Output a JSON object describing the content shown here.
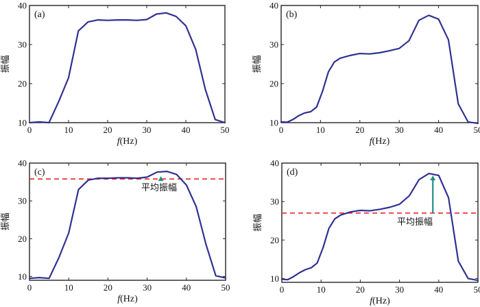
{
  "colors": {
    "series": "#2e3192",
    "mean": "#e8262a",
    "arrow": "#1f8f85"
  },
  "chart_data": [
    {
      "type": "line",
      "panel_label": "(a)",
      "xlabel_italic": "f",
      "xlabel_unit": "(Hz)",
      "ylabel": "振幅",
      "xlim": [
        0,
        50
      ],
      "ylim": [
        10,
        40
      ],
      "xticks": [
        0,
        10,
        20,
        30,
        40,
        50
      ],
      "yticks": [
        10,
        20,
        30,
        40
      ],
      "x": [
        0,
        2.5,
        5,
        7.5,
        10,
        12.5,
        15,
        17.5,
        20,
        22.5,
        25,
        27.5,
        30,
        32.5,
        35,
        37.5,
        40,
        42.5,
        45,
        47.5,
        50
      ],
      "values": [
        10,
        10.2,
        10,
        15.5,
        21.5,
        33.5,
        35.8,
        36.3,
        36.2,
        36.3,
        36.3,
        36.2,
        36.4,
        37.8,
        38.1,
        37.2,
        34.8,
        28.8,
        18.5,
        10.8,
        10
      ]
    },
    {
      "type": "line",
      "panel_label": "(b)",
      "xlabel_italic": "f",
      "xlabel_unit": "(Hz)",
      "ylabel": "振幅",
      "xlim": [
        0,
        50
      ],
      "ylim": [
        10,
        40
      ],
      "xticks": [
        0,
        10,
        20,
        30,
        40,
        50
      ],
      "yticks": [
        10,
        20,
        30,
        40
      ],
      "x": [
        0,
        1.5,
        3,
        4.5,
        6,
        7.5,
        9,
        10.5,
        12,
        13.5,
        15,
        17.5,
        20,
        22.5,
        25,
        27.5,
        30,
        32.5,
        35,
        37.5,
        40,
        42.5,
        45,
        47.5,
        50
      ],
      "values": [
        10.2,
        10.1,
        10.8,
        11.8,
        12.5,
        12.8,
        14,
        18,
        23,
        25.5,
        26.5,
        27.2,
        27.7,
        27.6,
        27.9,
        28.4,
        29,
        31,
        36.2,
        37.5,
        36.5,
        31.2,
        14.8,
        10.2,
        9.8
      ]
    },
    {
      "type": "line",
      "panel_label": "(c)",
      "xlabel_italic": "f",
      "xlabel_unit": "(Hz)",
      "ylabel": "振幅",
      "xlim": [
        0,
        50
      ],
      "ylim": [
        9,
        40
      ],
      "xticks": [
        0,
        10,
        20,
        30,
        40,
        50
      ],
      "yticks": [
        10,
        20,
        30,
        40
      ],
      "x": [
        0,
        2.5,
        5,
        7.5,
        10,
        12.5,
        15,
        17.5,
        20,
        22.5,
        25,
        27.5,
        30,
        32.5,
        35,
        37.5,
        40,
        42.5,
        45,
        47.5,
        50
      ],
      "values": [
        9.5,
        9.7,
        9.5,
        15,
        21.5,
        33,
        35.5,
        36,
        36,
        36.1,
        36.1,
        36,
        36.3,
        37.6,
        37.8,
        37,
        34.2,
        28.5,
        18.5,
        10.2,
        9.6
      ],
      "mean": 35.8,
      "arrow_x": 33.5,
      "annotation": "平均振幅"
    },
    {
      "type": "line",
      "panel_label": "(d)",
      "xlabel_italic": "f",
      "xlabel_unit": "(Hz)",
      "ylabel": "振幅",
      "xlim": [
        0,
        50
      ],
      "ylim": [
        9,
        40
      ],
      "xticks": [
        0,
        10,
        20,
        30,
        40,
        50
      ],
      "yticks": [
        10,
        20,
        30,
        40
      ],
      "x": [
        0,
        1.5,
        3,
        4.5,
        6,
        7.5,
        9,
        10.5,
        12,
        13.5,
        15,
        17.5,
        20,
        22.5,
        25,
        27.5,
        30,
        32.5,
        35,
        37.5,
        40,
        42.5,
        45,
        47.5,
        50
      ],
      "values": [
        9.8,
        9.7,
        10.5,
        11.5,
        12.3,
        12.8,
        14,
        18,
        23,
        25.5,
        26.5,
        27.3,
        27.7,
        27.6,
        28,
        28.5,
        29.3,
        31.5,
        35.7,
        37.3,
        36.8,
        31,
        14.5,
        10,
        9.5
      ],
      "mean": 27,
      "arrow_x": 38.5,
      "annotation": "平均振幅"
    }
  ]
}
